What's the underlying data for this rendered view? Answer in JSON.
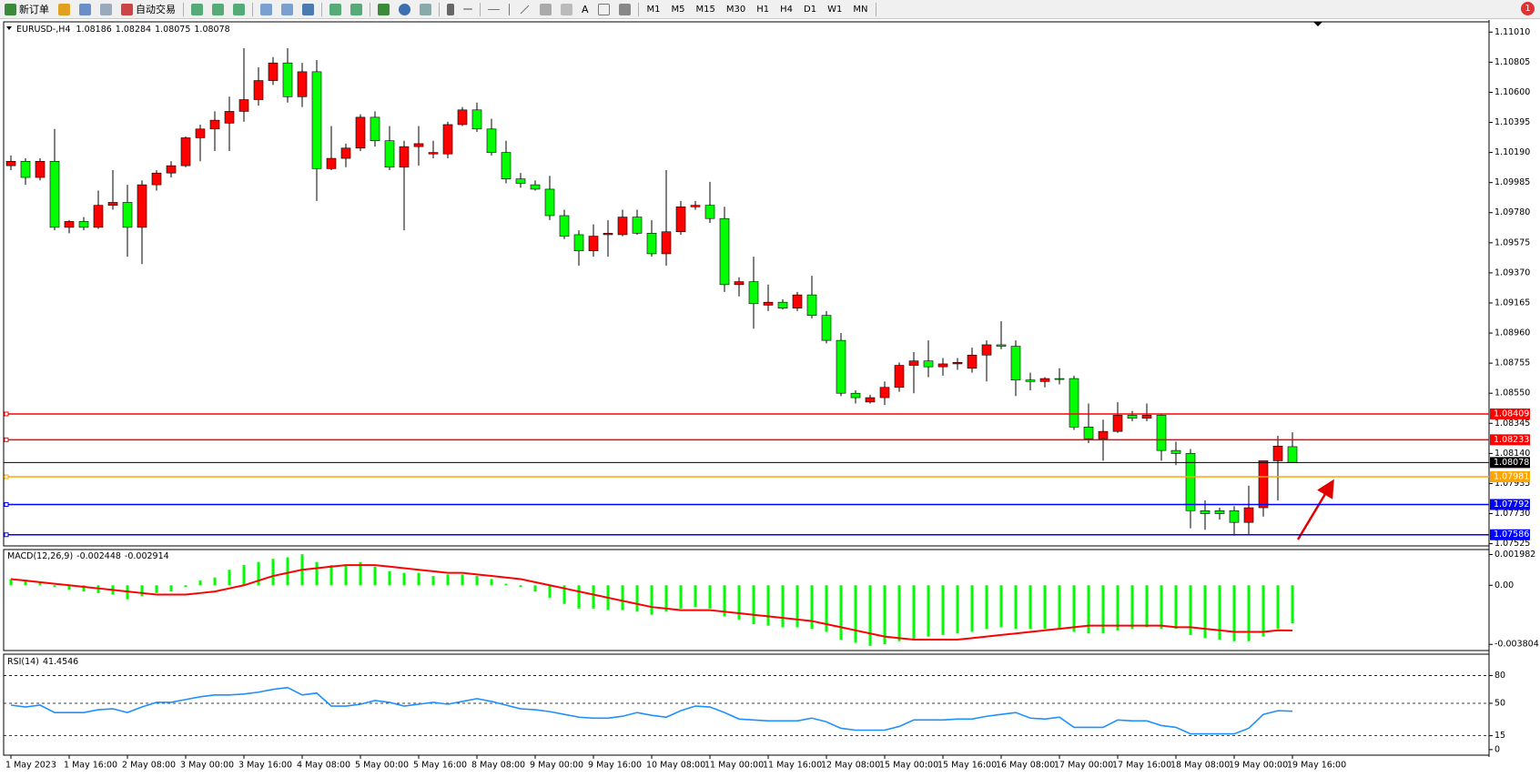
{
  "toolbar": {
    "new_order": "新订单",
    "auto_trading": "自动交易",
    "text_tool": "A",
    "timeframes": [
      "M1",
      "M5",
      "M15",
      "M30",
      "H1",
      "H4",
      "D1",
      "W1",
      "MN"
    ],
    "notifications": "1"
  },
  "chart_data": [
    {
      "type": "candlestick",
      "title": "EURUSD-,H4",
      "categories": [
        "1 May 2023",
        null,
        null,
        null,
        "1 May 16:00",
        null,
        null,
        null,
        "2 May 08:00",
        null,
        null,
        null,
        "3 May 00:00",
        null,
        null,
        null,
        "3 May 16:00",
        null,
        null,
        null,
        "4 May 08:00",
        null,
        null,
        null,
        "5 May 00:00",
        null,
        null,
        null,
        "5 May 16:00",
        null,
        null,
        null,
        "8 May 08:00",
        null,
        null,
        null,
        "9 May 00:00",
        null,
        null,
        null,
        "9 May 16:00",
        null,
        null,
        null,
        "10 May 08:00",
        null,
        null,
        null,
        "11 May 00:00",
        null,
        null,
        null,
        "11 May 16:00",
        null,
        null,
        null,
        "12 May 08:00",
        null,
        null,
        null,
        "15 May 00:00",
        null,
        null,
        null,
        "15 May 16:00",
        null,
        null,
        null,
        "16 May 08:00",
        null,
        null,
        null,
        "17 May 00:00",
        null,
        null,
        null,
        "17 May 16:00",
        null,
        null,
        null,
        "18 May 08:00",
        null,
        null,
        null,
        "19 May 00:00",
        null,
        null,
        null,
        "19 May 16:00"
      ],
      "open": [
        1.101,
        1.1013,
        1.1002,
        1.1013,
        1.0968,
        1.0972,
        1.0968,
        1.0983,
        1.0985,
        1.0968,
        1.0997,
        1.1005,
        1.101,
        1.1029,
        1.1035,
        1.1039,
        1.1047,
        1.1055,
        1.1068,
        1.108,
        1.1057,
        1.1074,
        1.1008,
        1.1015,
        1.1022,
        1.1043,
        1.1027,
        1.1009,
        1.1023,
        1.1018,
        1.1018,
        1.1038,
        1.1048,
        1.1035,
        1.1019,
        1.1001,
        1.0997,
        1.0994,
        1.0976,
        1.0963,
        1.0952,
        1.0963,
        1.0963,
        1.0975,
        1.0964,
        1.095,
        1.0965,
        1.0982,
        1.0983,
        1.0974,
        1.0929,
        1.0931,
        1.0915,
        1.0917,
        1.0913,
        1.0922,
        1.0908,
        1.0891,
        1.0855,
        1.0849,
        1.0852,
        1.0859,
        1.0874,
        1.0877,
        1.0873,
        1.0875,
        1.0872,
        1.0881,
        1.0888,
        1.0887,
        1.0864,
        1.0863,
        1.0865,
        1.0865,
        1.0832,
        1.0824,
        1.0829,
        1.084,
        1.0838,
        1.084,
        1.0816,
        1.0814,
        1.0775,
        1.0775,
        1.0775,
        1.0767,
        1.0777,
        1.0809,
        1.08186
      ],
      "high": [
        1.1017,
        1.1015,
        1.1015,
        1.1035,
        1.0973,
        1.0975,
        1.0993,
        1.1007,
        1.0997,
        1.1,
        1.1007,
        1.1013,
        1.103,
        1.1038,
        1.1047,
        1.1057,
        1.109,
        1.1077,
        1.1084,
        1.109,
        1.108,
        1.1082,
        1.1037,
        1.1025,
        1.1045,
        1.1047,
        1.1037,
        1.1027,
        1.1037,
        1.1027,
        1.104,
        1.105,
        1.1053,
        1.1042,
        1.1027,
        1.1005,
        1.1,
        1.1003,
        1.098,
        1.0966,
        1.097,
        1.0973,
        1.098,
        1.098,
        1.0973,
        1.1007,
        1.0986,
        1.0986,
        1.0999,
        1.0982,
        1.0934,
        1.0948,
        1.0929,
        1.0919,
        1.0924,
        1.0935,
        1.0911,
        1.0896,
        1.0857,
        1.0854,
        1.0863,
        1.0876,
        1.0883,
        1.0891,
        1.0879,
        1.0879,
        1.0886,
        1.0891,
        1.0904,
        1.0891,
        1.0869,
        1.0866,
        1.0872,
        1.0867,
        1.0848,
        1.0837,
        1.0849,
        1.0843,
        1.0848,
        1.0841,
        1.0822,
        1.0817,
        1.0782,
        1.0777,
        1.0778,
        1.0792,
        1.0809,
        1.0826,
        1.08284
      ],
      "low": [
        1.1007,
        1.0997,
        1.1,
        1.0966,
        1.0964,
        1.0966,
        1.0967,
        1.098,
        1.0948,
        1.0943,
        1.0993,
        1.1002,
        1.1009,
        1.1013,
        1.102,
        1.102,
        1.104,
        1.1051,
        1.1065,
        1.1053,
        1.105,
        1.0986,
        1.1007,
        1.1009,
        1.102,
        1.1023,
        1.1007,
        1.0966,
        1.101,
        1.1015,
        1.1015,
        1.1037,
        1.1033,
        1.1017,
        1.0998,
        1.0995,
        1.0993,
        1.0973,
        1.096,
        1.0942,
        1.0948,
        1.0948,
        1.0962,
        1.0963,
        1.0948,
        1.0942,
        1.0963,
        1.098,
        1.0971,
        1.0924,
        1.0921,
        1.0899,
        1.0911,
        1.0912,
        1.0911,
        1.0906,
        1.0889,
        1.0853,
        1.0848,
        1.0848,
        1.0847,
        1.0856,
        1.0855,
        1.0866,
        1.0867,
        1.0871,
        1.0869,
        1.0863,
        1.0885,
        1.0853,
        1.0857,
        1.0859,
        1.0861,
        1.083,
        1.0821,
        1.0809,
        1.0828,
        1.0836,
        1.0836,
        1.0809,
        1.0806,
        1.0763,
        1.0762,
        1.0769,
        1.0758,
        1.0759,
        1.0771,
        1.0782,
        1.08075
      ],
      "close": [
        1.1013,
        1.1002,
        1.1013,
        1.0968,
        1.0972,
        1.0968,
        1.0983,
        1.0985,
        1.0968,
        1.0997,
        1.1005,
        1.101,
        1.1029,
        1.1035,
        1.1041,
        1.1047,
        1.1055,
        1.1068,
        1.108,
        1.1057,
        1.1074,
        1.1008,
        1.1015,
        1.1022,
        1.1043,
        1.1027,
        1.1009,
        1.1023,
        1.1025,
        1.1019,
        1.1038,
        1.1048,
        1.1035,
        1.1019,
        1.1001,
        1.0998,
        1.0994,
        1.0976,
        1.0962,
        1.0952,
        1.0962,
        1.0964,
        1.0975,
        1.0964,
        1.095,
        1.0965,
        1.0982,
        1.0983,
        1.0974,
        1.0929,
        1.0931,
        1.0916,
        1.0917,
        1.0913,
        1.0922,
        1.0908,
        1.0891,
        1.0855,
        1.0852,
        1.0852,
        1.0859,
        1.0874,
        1.0877,
        1.0873,
        1.0875,
        1.0876,
        1.0881,
        1.0888,
        1.0887,
        1.0864,
        1.0863,
        1.0865,
        1.0865,
        1.0832,
        1.0824,
        1.0829,
        1.084,
        1.0838,
        1.084,
        1.0816,
        1.0814,
        1.0775,
        1.0773,
        1.0773,
        1.0767,
        1.0777,
        1.0809,
        1.0819,
        1.08078
      ],
      "bull_color": "#ff0000",
      "bear_color": "#00ff00",
      "bid_color": "#000000",
      "ylim": [
        1.0751,
        1.1108
      ],
      "yticks": [
        {
          "value": 1.1101,
          "label": "1.11010"
        },
        1.10805,
        {
          "value": 1.106,
          "label": "1.10600"
        },
        1.10395,
        {
          "value": 1.1019,
          "label": "1.10190"
        },
        1.09985,
        {
          "value": 1.0978,
          "label": "1.09780"
        },
        1.09575,
        {
          "value": 1.0937,
          "label": "1.09370"
        },
        1.09165,
        {
          "value": 1.0896,
          "label": "1.08960"
        },
        1.08755,
        {
          "value": 1.0855,
          "label": "1.08550"
        },
        1.08345,
        {
          "value": 1.0814,
          "label": "1.08140"
        },
        1.07935,
        {
          "value": 1.0773,
          "label": "1.07730"
        },
        1.07525
      ],
      "levels": [
        {
          "value": 1.08409,
          "color": "#ff0000"
        },
        {
          "value": 1.08233,
          "color": "#ff0000"
        },
        {
          "value": 1.07981,
          "color": "#ffa500"
        },
        {
          "value": 1.07792,
          "color": "#0000ff"
        },
        {
          "value": 1.07586,
          "color": "#0000ff"
        }
      ]
    },
    {
      "type": "macd",
      "title": "MACD(12,26,9)",
      "histogram": [
        0.0004,
        0.0003,
        0.0002,
        -0.0001,
        -0.0003,
        -0.0004,
        -0.0005,
        -0.0006,
        -0.0009,
        -0.0007,
        -0.0005,
        -0.0004,
        -0.0001,
        0.0003,
        0.0005,
        0.001,
        0.0013,
        0.0015,
        0.0017,
        0.0018,
        0.002,
        0.0015,
        0.0013,
        0.0013,
        0.0015,
        0.0012,
        0.0009,
        0.0008,
        0.0008,
        0.0006,
        0.0007,
        0.0007,
        0.0006,
        0.0004,
        0.0001,
        -0.0001,
        -0.0004,
        -0.0008,
        -0.0012,
        -0.0015,
        -0.0015,
        -0.0016,
        -0.0016,
        -0.0017,
        -0.0019,
        -0.0017,
        -0.0015,
        -0.0014,
        -0.0015,
        -0.002,
        -0.0022,
        -0.0025,
        -0.0026,
        -0.0027,
        -0.0027,
        -0.0028,
        -0.003,
        -0.0035,
        -0.0037,
        -0.0039,
        -0.0038,
        -0.0036,
        -0.0035,
        -0.0033,
        -0.0032,
        -0.0031,
        -0.003,
        -0.0028,
        -0.0027,
        -0.0028,
        -0.0028,
        -0.0028,
        -0.0028,
        -0.003,
        -0.0031,
        -0.0031,
        -0.0029,
        -0.0028,
        -0.0027,
        -0.0028,
        -0.0028,
        -0.0032,
        -0.0034,
        -0.0035,
        -0.0036,
        -0.0036,
        -0.0033,
        -0.0028,
        -0.002448
      ],
      "signal": [
        0.0004,
        0.0003,
        0.0002,
        0.0001,
        0.0,
        -0.0001,
        -0.0002,
        -0.0003,
        -0.0004,
        -0.0005,
        -0.0006,
        -0.0006,
        -0.0006,
        -0.0005,
        -0.0004,
        -0.0002,
        0.0,
        0.0003,
        0.0006,
        0.0008,
        0.001,
        0.0011,
        0.0012,
        0.0013,
        0.0013,
        0.0013,
        0.0012,
        0.0011,
        0.001,
        0.0009,
        0.0008,
        0.0008,
        0.0007,
        0.0006,
        0.0005,
        0.0004,
        0.0002,
        0.0,
        -0.0002,
        -0.0004,
        -0.0006,
        -0.0008,
        -0.001,
        -0.0012,
        -0.0014,
        -0.0015,
        -0.0016,
        -0.0016,
        -0.0016,
        -0.0017,
        -0.0018,
        -0.0019,
        -0.002,
        -0.0021,
        -0.0022,
        -0.0023,
        -0.0025,
        -0.0027,
        -0.0029,
        -0.0031,
        -0.0033,
        -0.0034,
        -0.0035,
        -0.0035,
        -0.0035,
        -0.0035,
        -0.0034,
        -0.0033,
        -0.0032,
        -0.0031,
        -0.003,
        -0.0029,
        -0.0028,
        -0.0027,
        -0.0026,
        -0.0026,
        -0.0026,
        -0.0026,
        -0.0026,
        -0.0026,
        -0.0027,
        -0.0027,
        -0.0028,
        -0.0029,
        -0.003,
        -0.003,
        -0.003,
        -0.0029,
        -0.002914
      ],
      "histogram_color": "#00ff00",
      "signal_color": "#ff0000",
      "ylim": [
        -0.0042,
        0.0023
      ],
      "yticks": [
        0.001982,
        {
          "value": 0,
          "label": "0.00"
        },
        -0.003804
      ]
    },
    {
      "type": "line",
      "title": "RSI(14)",
      "values": [
        48,
        46,
        48,
        40,
        40,
        40,
        43,
        44,
        40,
        46,
        51,
        51,
        54,
        57,
        59,
        59,
        60,
        62,
        65,
        67,
        59,
        61,
        47,
        47,
        49,
        53,
        51,
        47,
        49,
        51,
        49,
        52,
        55,
        52,
        48,
        44,
        43,
        41,
        38,
        35,
        34,
        34,
        36,
        40,
        37,
        35,
        42,
        47,
        46,
        40,
        33,
        32,
        31,
        31,
        31,
        34,
        30,
        23,
        21,
        21,
        21,
        25,
        32,
        32,
        32,
        33,
        33,
        36,
        38,
        40,
        34,
        33,
        35,
        24,
        24,
        24,
        32,
        31,
        31,
        26,
        24,
        17,
        17,
        17,
        17,
        23,
        38,
        42,
        41.4546
      ],
      "color": "#1e90ff",
      "ylim": [
        -6,
        103
      ],
      "yticks": [
        80,
        50,
        15,
        0
      ],
      "levels": [
        80,
        50,
        15
      ]
    }
  ]
}
